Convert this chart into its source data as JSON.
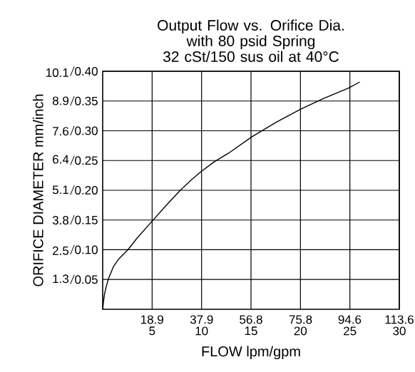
{
  "chart_data": {
    "type": "line",
    "title": "Output Flow vs. Orifice Dia.\nwith 80 psid Spring\n32 cSt/150 sus oil at 40°C",
    "xlabel": "FLOW lpm/gpm",
    "ylabel": "ORIFICE DIAMETER mm/inch",
    "series": [
      {
        "color": "#000000",
        "axis": "y2",
        "x": [
          0,
          0.1,
          0.2,
          0.39,
          0.6,
          1.1,
          1.6,
          2.55,
          3.5,
          5,
          6.5,
          7.85,
          9,
          10,
          11.3,
          12.7,
          15.1,
          17.5,
          20,
          22.3,
          24.9,
          26.0
        ],
        "values": [
          0,
          0.015,
          0.027,
          0.04,
          0.052,
          0.072,
          0.084,
          0.1,
          0.12,
          0.148,
          0.176,
          0.2,
          0.218,
          0.232,
          0.248,
          0.262,
          0.29,
          0.314,
          0.336,
          0.354,
          0.372,
          0.382
        ]
      }
    ],
    "xlim": [
      0,
      30
    ],
    "ylim": [
      0,
      10.16
    ],
    "xticks": [
      5,
      10,
      15,
      20,
      25,
      30
    ],
    "yticks": [
      1.3,
      2.5,
      3.8,
      5.1,
      6.4,
      7.6,
      8.9,
      10.1
    ],
    "x2lim": [
      0,
      113.6
    ],
    "x2ticks": [
      18.9,
      37.9,
      56.8,
      75.8,
      94.6,
      113.6
    ],
    "y2lim": [
      0,
      0.4
    ],
    "y2ticks": [
      0.05,
      {
        "value": 0.1,
        "label": "0.10"
      },
      0.15,
      {
        "value": 0.2,
        "label": "0.20"
      },
      0.25,
      {
        "value": 0.3,
        "label": "0.30"
      },
      0.35,
      {
        "value": 0.4,
        "label": "0.40"
      }
    ],
    "grid": true,
    "marker": "none",
    "line_style": "solid"
  }
}
